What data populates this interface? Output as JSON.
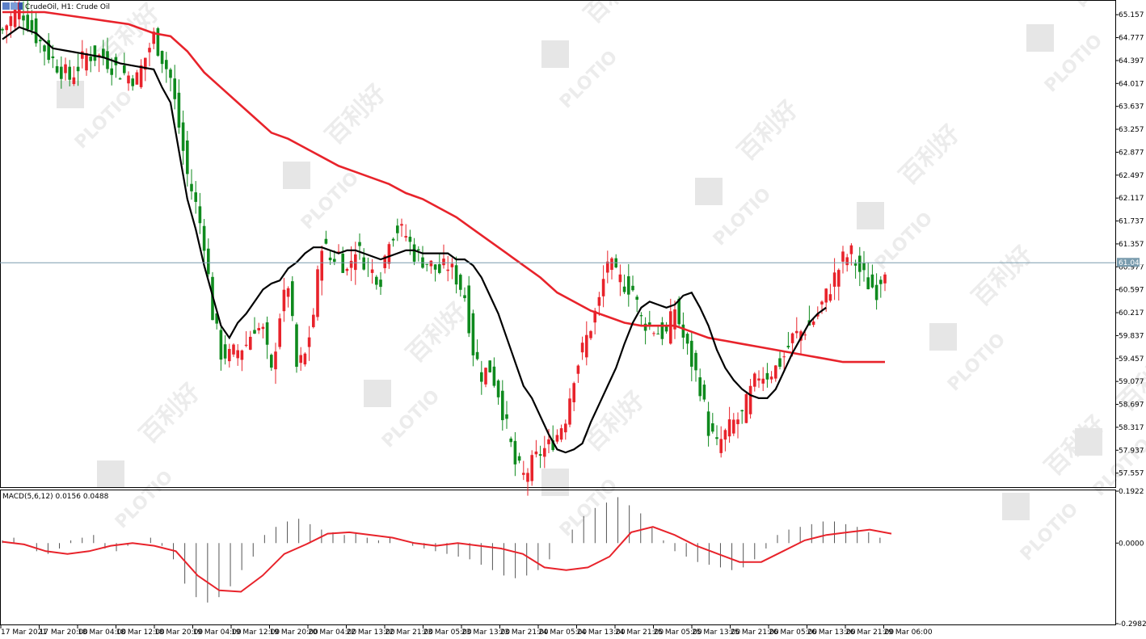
{
  "header": {
    "symbol_text": "CrudeOil, H1:  Crude Oil"
  },
  "indicator": {
    "label": "MACD(5,6,12) 0.0156 0.0488"
  },
  "watermark": {
    "brand": "PLOTIO",
    "chinese": "百利好"
  },
  "colors": {
    "bull": "#e8232b",
    "bear": "#0f8a1e",
    "ma_fast": "#000000",
    "ma_slow": "#e8232b",
    "macd_signal": "#e8232b",
    "macd_hist": "#555555",
    "price_line": "#7a9cae",
    "price_tag_bg": "#7a9cae"
  },
  "chart_data": {
    "type": "candlestick",
    "title": "CrudeOil, H1:  Crude Oil",
    "price_axis": {
      "range": [
        57.365,
        65.347
      ],
      "ticks": [
        "65.157",
        "64.777",
        "64.397",
        "64.017",
        "63.637",
        "63.257",
        "62.877",
        "62.497",
        "62.117",
        "61.737",
        "61.357",
        "60.977",
        "60.597",
        "60.217",
        "59.837",
        "59.457",
        "59.077",
        "58.697",
        "58.317",
        "57.937",
        "57.557"
      ],
      "current_price": "61.045"
    },
    "time_axis": {
      "labels": [
        "17 Mar 2021",
        "17 Mar 20:00",
        "18 Mar 04:00",
        "18 Mar 12:00",
        "18 Mar 20:00",
        "19 Mar 04:00",
        "19 Mar 12:00",
        "19 Mar 20:00",
        "20 Mar 04:00",
        "22 Mar 13:00",
        "22 Mar 21:00",
        "23 Mar 05:00",
        "23 Mar 13:00",
        "23 Mar 21:00",
        "24 Mar 05:00",
        "24 Mar 13:00",
        "24 Mar 21:00",
        "25 Mar 05:00",
        "25 Mar 13:00",
        "25 Mar 21:00",
        "26 Mar 05:00",
        "26 Mar 13:00",
        "26 Mar 21:00",
        "29 Mar 06:00"
      ]
    },
    "close_path": [
      [
        0,
        64.9
      ],
      [
        4,
        65.3
      ],
      [
        8,
        64.8
      ],
      [
        12,
        64.4
      ],
      [
        16,
        64.1
      ],
      [
        20,
        64.5
      ],
      [
        24,
        64.45
      ],
      [
        28,
        64.2
      ],
      [
        32,
        64.1
      ],
      [
        36,
        64.8
      ],
      [
        40,
        64.1
      ],
      [
        42,
        63.3
      ],
      [
        44,
        62.5
      ],
      [
        46,
        62.0
      ],
      [
        48,
        61.4
      ],
      [
        50,
        60.2
      ],
      [
        52,
        59.55
      ],
      [
        54,
        59.5
      ],
      [
        56,
        59.6
      ],
      [
        58,
        59.7
      ],
      [
        60,
        60.0
      ],
      [
        62,
        59.9
      ],
      [
        64,
        59.2
      ],
      [
        66,
        60.2
      ],
      [
        68,
        60.7
      ],
      [
        70,
        59.3
      ],
      [
        72,
        59.5
      ],
      [
        74,
        60.2
      ],
      [
        76,
        61.4
      ],
      [
        78,
        61.1
      ],
      [
        80,
        61.2
      ],
      [
        82,
        60.9
      ],
      [
        84,
        61.3
      ],
      [
        86,
        61.1
      ],
      [
        88,
        60.9
      ],
      [
        90,
        60.8
      ],
      [
        92,
        61.5
      ],
      [
        94,
        61.6
      ],
      [
        96,
        61.5
      ],
      [
        98,
        61.2
      ],
      [
        100,
        61.1
      ],
      [
        102,
        61.0
      ],
      [
        104,
        60.9
      ],
      [
        106,
        61.0
      ],
      [
        108,
        60.8
      ],
      [
        110,
        60.5
      ],
      [
        112,
        59.6
      ],
      [
        114,
        59.2
      ],
      [
        116,
        59.3
      ],
      [
        118,
        58.9
      ],
      [
        120,
        58.3
      ],
      [
        122,
        57.7
      ],
      [
        124,
        57.5
      ],
      [
        126,
        57.7
      ],
      [
        128,
        57.9
      ],
      [
        130,
        58.0
      ],
      [
        132,
        58.2
      ],
      [
        134,
        58.5
      ],
      [
        136,
        59.2
      ],
      [
        138,
        59.6
      ],
      [
        140,
        60.0
      ],
      [
        142,
        60.4
      ],
      [
        144,
        61.1
      ],
      [
        146,
        60.8
      ],
      [
        148,
        60.7
      ],
      [
        150,
        60.6
      ],
      [
        152,
        60.1
      ],
      [
        154,
        60.0
      ],
      [
        156,
        59.9
      ],
      [
        158,
        59.85
      ],
      [
        160,
        60.3
      ],
      [
        162,
        59.8
      ],
      [
        164,
        59.4
      ],
      [
        166,
        59.0
      ],
      [
        168,
        58.3
      ],
      [
        170,
        58.0
      ],
      [
        172,
        58.2
      ],
      [
        174,
        58.4
      ],
      [
        176,
        58.5
      ],
      [
        178,
        58.9
      ],
      [
        180,
        59.2
      ],
      [
        182,
        59.2
      ],
      [
        184,
        59.3
      ],
      [
        186,
        59.5
      ],
      [
        188,
        59.8
      ],
      [
        190,
        59.9
      ],
      [
        192,
        60.0
      ],
      [
        194,
        60.2
      ],
      [
        196,
        60.5
      ],
      [
        198,
        60.8
      ],
      [
        200,
        61.1
      ],
      [
        202,
        61.2
      ],
      [
        204,
        60.9
      ],
      [
        206,
        60.7
      ],
      [
        208,
        60.6
      ],
      [
        210,
        61.0
      ]
    ],
    "ma_fast": [
      [
        0,
        64.75
      ],
      [
        4,
        64.95
      ],
      [
        8,
        64.85
      ],
      [
        12,
        64.6
      ],
      [
        16,
        64.55
      ],
      [
        20,
        64.5
      ],
      [
        24,
        64.45
      ],
      [
        28,
        64.35
      ],
      [
        32,
        64.3
      ],
      [
        36,
        64.25
      ],
      [
        38,
        63.95
      ],
      [
        40,
        63.7
      ],
      [
        42,
        62.9
      ],
      [
        44,
        62.1
      ],
      [
        46,
        61.6
      ],
      [
        48,
        61.0
      ],
      [
        50,
        60.5
      ],
      [
        52,
        60.0
      ],
      [
        54,
        59.8
      ],
      [
        56,
        60.05
      ],
      [
        58,
        60.2
      ],
      [
        60,
        60.4
      ],
      [
        62,
        60.6
      ],
      [
        64,
        60.7
      ],
      [
        66,
        60.75
      ],
      [
        68,
        60.95
      ],
      [
        70,
        61.05
      ],
      [
        72,
        61.2
      ],
      [
        74,
        61.3
      ],
      [
        76,
        61.3
      ],
      [
        78,
        61.25
      ],
      [
        80,
        61.2
      ],
      [
        82,
        61.25
      ],
      [
        84,
        61.25
      ],
      [
        86,
        61.2
      ],
      [
        88,
        61.15
      ],
      [
        90,
        61.1
      ],
      [
        92,
        61.15
      ],
      [
        94,
        61.2
      ],
      [
        96,
        61.25
      ],
      [
        98,
        61.25
      ],
      [
        100,
        61.2
      ],
      [
        102,
        61.2
      ],
      [
        104,
        61.2
      ],
      [
        106,
        61.2
      ],
      [
        108,
        61.1
      ],
      [
        110,
        61.1
      ],
      [
        112,
        61.0
      ],
      [
        114,
        60.8
      ],
      [
        116,
        60.5
      ],
      [
        118,
        60.2
      ],
      [
        120,
        59.8
      ],
      [
        122,
        59.4
      ],
      [
        124,
        59.0
      ],
      [
        126,
        58.8
      ],
      [
        128,
        58.5
      ],
      [
        130,
        58.2
      ],
      [
        132,
        57.95
      ],
      [
        134,
        57.9
      ],
      [
        136,
        57.95
      ],
      [
        138,
        58.05
      ],
      [
        140,
        58.4
      ],
      [
        142,
        58.7
      ],
      [
        144,
        59.0
      ],
      [
        146,
        59.3
      ],
      [
        148,
        59.7
      ],
      [
        150,
        60.05
      ],
      [
        152,
        60.3
      ],
      [
        154,
        60.4
      ],
      [
        156,
        60.35
      ],
      [
        158,
        60.3
      ],
      [
        160,
        60.35
      ],
      [
        162,
        60.5
      ],
      [
        164,
        60.55
      ],
      [
        166,
        60.3
      ],
      [
        168,
        60.0
      ],
      [
        170,
        59.6
      ],
      [
        172,
        59.3
      ],
      [
        174,
        59.1
      ],
      [
        176,
        58.95
      ],
      [
        178,
        58.85
      ],
      [
        180,
        58.8
      ],
      [
        182,
        58.8
      ],
      [
        184,
        58.95
      ],
      [
        186,
        59.25
      ],
      [
        188,
        59.55
      ],
      [
        190,
        59.8
      ],
      [
        192,
        60.05
      ],
      [
        194,
        60.2
      ],
      [
        196,
        60.3
      ]
    ],
    "ma_slow": [
      [
        0,
        65.2
      ],
      [
        10,
        65.2
      ],
      [
        20,
        65.1
      ],
      [
        30,
        65.0
      ],
      [
        36,
        64.85
      ],
      [
        40,
        64.8
      ],
      [
        44,
        64.55
      ],
      [
        48,
        64.2
      ],
      [
        52,
        63.95
      ],
      [
        56,
        63.7
      ],
      [
        60,
        63.45
      ],
      [
        64,
        63.2
      ],
      [
        68,
        63.1
      ],
      [
        72,
        62.95
      ],
      [
        76,
        62.8
      ],
      [
        80,
        62.65
      ],
      [
        84,
        62.55
      ],
      [
        88,
        62.45
      ],
      [
        92,
        62.35
      ],
      [
        96,
        62.2
      ],
      [
        100,
        62.1
      ],
      [
        104,
        61.95
      ],
      [
        108,
        61.8
      ],
      [
        112,
        61.6
      ],
      [
        116,
        61.4
      ],
      [
        120,
        61.2
      ],
      [
        124,
        61.0
      ],
      [
        128,
        60.8
      ],
      [
        132,
        60.55
      ],
      [
        136,
        60.4
      ],
      [
        140,
        60.25
      ],
      [
        144,
        60.15
      ],
      [
        148,
        60.05
      ],
      [
        152,
        60.0
      ],
      [
        156,
        60.0
      ],
      [
        160,
        60.0
      ],
      [
        164,
        59.9
      ],
      [
        168,
        59.8
      ],
      [
        172,
        59.75
      ],
      [
        176,
        59.7
      ],
      [
        180,
        59.65
      ],
      [
        184,
        59.6
      ],
      [
        188,
        59.55
      ],
      [
        192,
        59.5
      ],
      [
        196,
        59.45
      ],
      [
        200,
        59.4
      ],
      [
        204,
        59.4
      ],
      [
        208,
        59.4
      ],
      [
        210,
        59.4
      ]
    ],
    "macd": {
      "range": [
        -0.2982,
        0.1922
      ],
      "ticks": [
        "0.1922",
        "0.0000",
        "-0.2982"
      ],
      "macd_value": "0.0156",
      "signal_value": "0.0488",
      "signal": [
        [
          0,
          0.005
        ],
        [
          10,
          -0.005
        ],
        [
          20,
          -0.03
        ],
        [
          30,
          -0.04
        ],
        [
          40,
          -0.03
        ],
        [
          50,
          -0.01
        ],
        [
          60,
          0.0
        ],
        [
          70,
          -0.01
        ],
        [
          80,
          -0.03
        ],
        [
          90,
          -0.12
        ],
        [
          100,
          -0.175
        ],
        [
          110,
          -0.18
        ],
        [
          120,
          -0.12
        ],
        [
          130,
          -0.04
        ],
        [
          140,
          -0.005
        ],
        [
          150,
          0.035
        ],
        [
          160,
          0.04
        ],
        [
          170,
          0.03
        ],
        [
          180,
          0.02
        ],
        [
          190,
          0.0
        ],
        [
          200,
          -0.01
        ],
        [
          210,
          0.0
        ],
        [
          220,
          -0.01
        ],
        [
          230,
          -0.02
        ],
        [
          240,
          -0.04
        ],
        [
          250,
          -0.09
        ],
        [
          260,
          -0.1
        ],
        [
          270,
          -0.09
        ],
        [
          280,
          -0.05
        ],
        [
          290,
          0.04
        ],
        [
          300,
          0.06
        ],
        [
          310,
          0.03
        ],
        [
          320,
          -0.01
        ],
        [
          330,
          -0.04
        ],
        [
          340,
          -0.07
        ],
        [
          350,
          -0.07
        ],
        [
          360,
          -0.03
        ],
        [
          370,
          0.01
        ],
        [
          380,
          0.03
        ],
        [
          390,
          0.04
        ],
        [
          400,
          0.05
        ],
        [
          410,
          0.035
        ]
      ],
      "histogram": [
        0.01,
        0.02,
        0.0,
        -0.03,
        -0.04,
        -0.02,
        0.01,
        0.02,
        0.03,
        -0.02,
        -0.03,
        -0.01,
        0.0,
        0.02,
        -0.01,
        -0.06,
        -0.15,
        -0.2,
        -0.22,
        -0.2,
        -0.16,
        -0.1,
        -0.05,
        0.03,
        0.06,
        0.08,
        0.09,
        0.07,
        0.05,
        0.04,
        0.03,
        0.04,
        0.02,
        0.01,
        0.02,
        0.0,
        -0.01,
        -0.02,
        -0.03,
        -0.04,
        -0.05,
        -0.06,
        -0.08,
        -0.1,
        -0.12,
        -0.13,
        -0.12,
        -0.1,
        -0.06,
        0.0,
        0.05,
        0.1,
        0.13,
        0.15,
        0.17,
        0.14,
        0.11,
        0.06,
        0.01,
        -0.03,
        -0.05,
        -0.07,
        -0.08,
        -0.09,
        -0.1,
        -0.09,
        -0.06,
        -0.02,
        0.03,
        0.05,
        0.06,
        0.07,
        0.08,
        0.08,
        0.07,
        0.06,
        0.04,
        0.02
      ]
    }
  }
}
